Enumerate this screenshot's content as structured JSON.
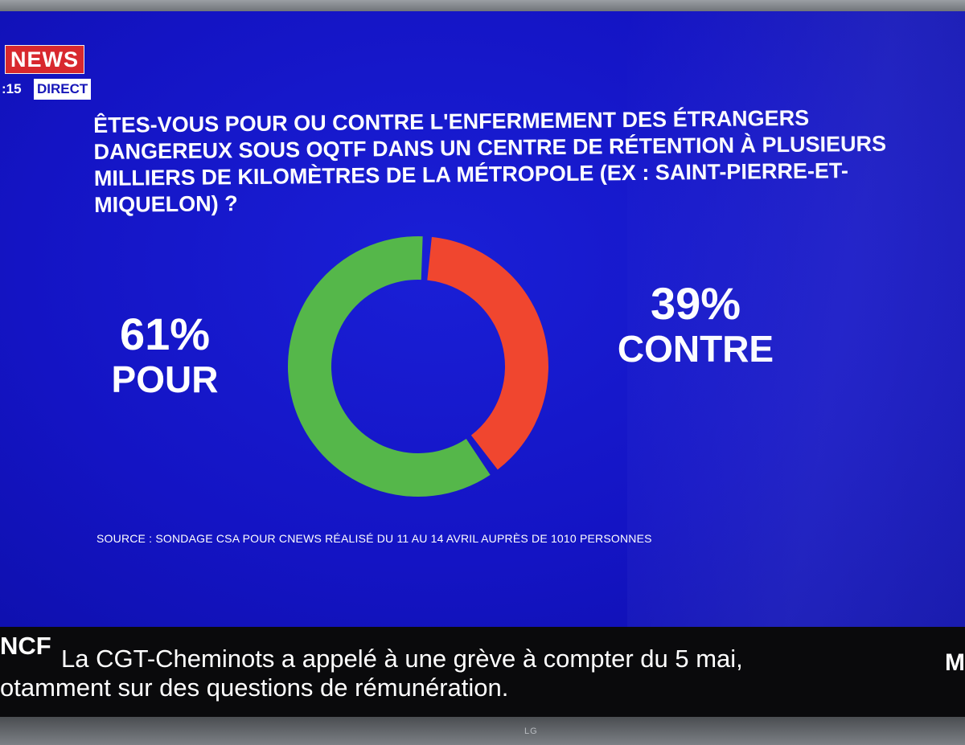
{
  "channel": {
    "logo": "NEWS",
    "time": ":15",
    "live_label": "DIRECT"
  },
  "question": "ÊTES-VOUS POUR OU CONTRE L'ENFERMEMENT DES ÉTRANGERS DANGEREUX SOUS OQTF DANS UN CENTRE DE RÉTENTION À PLUSIEURS MILLIERS DE KILOMÈTRES DE LA MÉTROPOLE (EX : SAINT-PIERRE-ET-MIQUELON) ?",
  "chart_data": {
    "type": "pie",
    "style": "donut",
    "title": "ÊTES-VOUS POUR OU CONTRE L'ENFERMEMENT DES ÉTRANGERS DANGEREUX SOUS OQTF DANS UN CENTRE DE RÉTENTION À PLUSIEURS MILLIERS DE KILOMÈTRES DE LA MÉTROPOLE (EX : SAINT-PIERRE-ET-MIQUELON) ?",
    "slices": [
      {
        "label": "POUR",
        "value": 61,
        "display": "61%",
        "color": "#55b74a"
      },
      {
        "label": "CONTRE",
        "value": 39,
        "display": "39%",
        "color": "#f0462f"
      }
    ],
    "source": "SOURCE : SONDAGE CSA POUR CNEWS RÉALISÉ DU 11 AU 14 AVRIL AUPRÈS DE 1010 PERSONNES"
  },
  "ticker": {
    "tag": "NCF",
    "line1": "La CGT-Cheminots a appelé à une grève à compter du 5 mai,",
    "line2": "otamment sur des questions de rémunération.",
    "edge": "M"
  },
  "tv": {
    "brand": "LG"
  },
  "colors": {
    "background": "#1616c4",
    "pour": "#55b74a",
    "contre": "#f0462f",
    "logo_red": "#d8282e",
    "ticker_bg": "#0a0a0c"
  }
}
